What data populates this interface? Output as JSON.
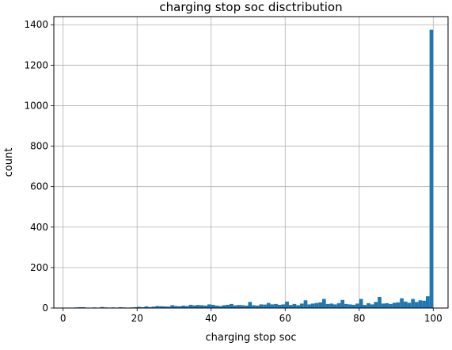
{
  "chart_data": {
    "type": "bar",
    "title": "charging stop soc disctribution",
    "xlabel": "charging stop soc",
    "ylabel": "count",
    "xlim": [
      -2.5,
      104.0
    ],
    "ylim": [
      0,
      1440
    ],
    "xticks": [
      0,
      20,
      40,
      60,
      80,
      100
    ],
    "yticks": [
      0,
      200,
      400,
      600,
      800,
      1000,
      1200,
      1400
    ],
    "grid": true,
    "bar_color": "#1f77b4",
    "bin_width": 1,
    "bins": {
      "left_edges": [
        0,
        1,
        2,
        3,
        4,
        5,
        6,
        7,
        8,
        9,
        10,
        11,
        12,
        13,
        14,
        15,
        16,
        17,
        18,
        19,
        20,
        21,
        22,
        23,
        24,
        25,
        26,
        27,
        28,
        29,
        30,
        31,
        32,
        33,
        34,
        35,
        36,
        37,
        38,
        39,
        40,
        41,
        42,
        43,
        44,
        45,
        46,
        47,
        48,
        49,
        50,
        51,
        52,
        53,
        54,
        55,
        56,
        57,
        58,
        59,
        60,
        61,
        62,
        63,
        64,
        65,
        66,
        67,
        68,
        69,
        70,
        71,
        72,
        73,
        74,
        75,
        76,
        77,
        78,
        79,
        80,
        81,
        82,
        83,
        84,
        85,
        86,
        87,
        88,
        89,
        90,
        91,
        92,
        93,
        94,
        95,
        96,
        97,
        98,
        99
      ],
      "counts": [
        2,
        1,
        1,
        3,
        4,
        4,
        2,
        1,
        3,
        2,
        5,
        3,
        2,
        3,
        2,
        4,
        3,
        2,
        3,
        4,
        6,
        4,
        8,
        5,
        7,
        10,
        9,
        8,
        7,
        14,
        10,
        9,
        12,
        10,
        16,
        13,
        15,
        14,
        12,
        18,
        16,
        12,
        10,
        14,
        16,
        20,
        13,
        15,
        14,
        12,
        30,
        14,
        12,
        18,
        17,
        25,
        18,
        20,
        16,
        18,
        32,
        15,
        20,
        14,
        22,
        38,
        18,
        22,
        25,
        28,
        45,
        20,
        22,
        18,
        24,
        40,
        20,
        18,
        16,
        22,
        45,
        15,
        24,
        18,
        30,
        55,
        22,
        24,
        20,
        26,
        28,
        48,
        32,
        26,
        45,
        30,
        38,
        36,
        58,
        1375
      ]
    }
  }
}
